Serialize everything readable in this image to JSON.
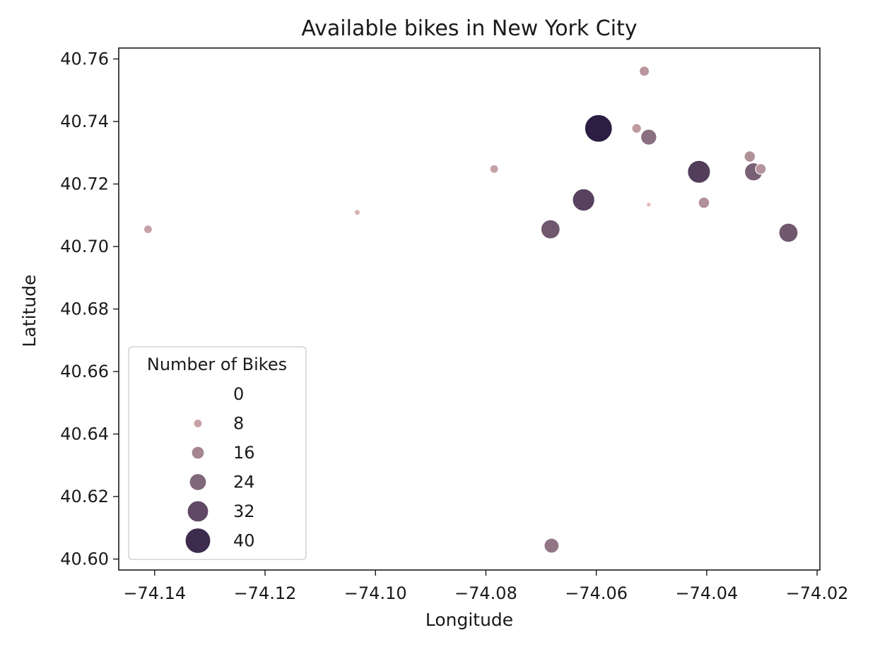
{
  "chart_data": {
    "type": "scatter",
    "title": "Available bikes in New York City",
    "xlabel": "Longitude",
    "ylabel": "Latitude",
    "xlim": [
      -74.1465,
      -74.0195
    ],
    "ylim": [
      40.5965,
      40.7635
    ],
    "x_ticks": [
      -74.14,
      -74.12,
      -74.1,
      -74.08,
      -74.06,
      -74.04,
      -74.02
    ],
    "x_tick_labels": [
      "−74.14",
      "−74.12",
      "−74.10",
      "−74.08",
      "−74.06",
      "−74.04",
      "−74.02"
    ],
    "y_ticks": [
      40.6,
      40.62,
      40.64,
      40.66,
      40.68,
      40.7,
      40.72,
      40.74,
      40.76
    ],
    "y_tick_labels": [
      "40.60",
      "40.62",
      "40.64",
      "40.66",
      "40.68",
      "40.70",
      "40.72",
      "40.74",
      "40.76"
    ],
    "grid": false,
    "legend": {
      "title": "Number of Bikes",
      "placement": "lower-left",
      "entries": [
        {
          "label": "0",
          "value": 0
        },
        {
          "label": "8",
          "value": 8
        },
        {
          "label": "16",
          "value": 16
        },
        {
          "label": "24",
          "value": 24
        },
        {
          "label": "32",
          "value": 32
        },
        {
          "label": "40",
          "value": 40
        }
      ]
    },
    "color_scale": {
      "light": "#e8c0bd",
      "dark": "#2c1d42",
      "min": 0,
      "max": 44
    },
    "size_encoding": "Number of Bikes",
    "hue_encoding": "Number of Bikes",
    "points": [
      {
        "x": -74.1412,
        "y": 40.7055,
        "bikes": 8
      },
      {
        "x": -74.1033,
        "y": 40.7109,
        "bikes": 3
      },
      {
        "x": -74.0785,
        "y": 40.7248,
        "bikes": 8
      },
      {
        "x": -74.0683,
        "y": 40.7055,
        "bikes": 28
      },
      {
        "x": -74.0681,
        "y": 40.6043,
        "bikes": 20
      },
      {
        "x": -74.0615,
        "y": 40.7149,
        "bikes": 16
      },
      {
        "x": -74.0623,
        "y": 40.7149,
        "bikes": 34
      },
      {
        "x": -74.0596,
        "y": 40.7378,
        "bikes": 44
      },
      {
        "x": -74.0527,
        "y": 40.7378,
        "bikes": 10
      },
      {
        "x": -74.0513,
        "y": 40.7561,
        "bikes": 11
      },
      {
        "x": -74.0505,
        "y": 40.735,
        "bikes": 22
      },
      {
        "x": -74.0505,
        "y": 40.7134,
        "bikes": 1
      },
      {
        "x": -74.0414,
        "y": 40.7239,
        "bikes": 35
      },
      {
        "x": -74.0405,
        "y": 40.714,
        "bikes": 13
      },
      {
        "x": -74.0322,
        "y": 40.7288,
        "bikes": 13
      },
      {
        "x": -74.0315,
        "y": 40.7239,
        "bikes": 26
      },
      {
        "x": -74.0302,
        "y": 40.7248,
        "bikes": 12
      },
      {
        "x": -74.0252,
        "y": 40.7044,
        "bikes": 28
      }
    ]
  }
}
